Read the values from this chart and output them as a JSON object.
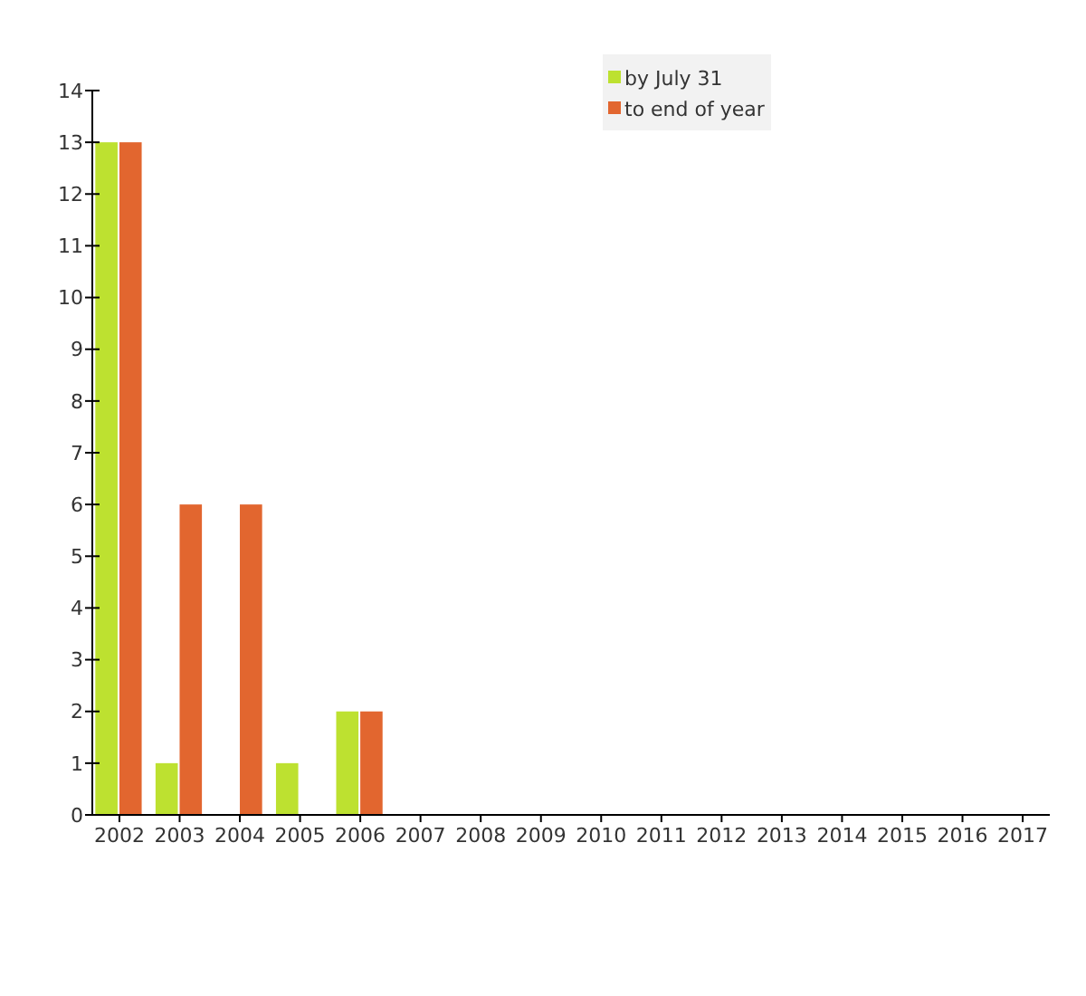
{
  "chart_data": {
    "type": "bar",
    "categories": [
      "2002",
      "2003",
      "2004",
      "2005",
      "2006",
      "2007",
      "2008",
      "2009",
      "2010",
      "2011",
      "2012",
      "2013",
      "2014",
      "2015",
      "2016",
      "2017"
    ],
    "series": [
      {
        "name": "by July 31",
        "color": "#bde130",
        "values": [
          13,
          1,
          0,
          1,
          2,
          0,
          0,
          0,
          0,
          0,
          0,
          0,
          0,
          0,
          0,
          0
        ]
      },
      {
        "name": "to end of year",
        "color": "#e2662f",
        "values": [
          13,
          6,
          6,
          0,
          2,
          0,
          0,
          0,
          0,
          0,
          0,
          0,
          0,
          0,
          0,
          0
        ]
      }
    ],
    "ylim": [
      0,
      14
    ],
    "yticks": [
      0,
      1,
      2,
      3,
      4,
      5,
      6,
      7,
      8,
      9,
      10,
      11,
      12,
      13,
      14
    ],
    "legend": "top",
    "grid": false
  }
}
